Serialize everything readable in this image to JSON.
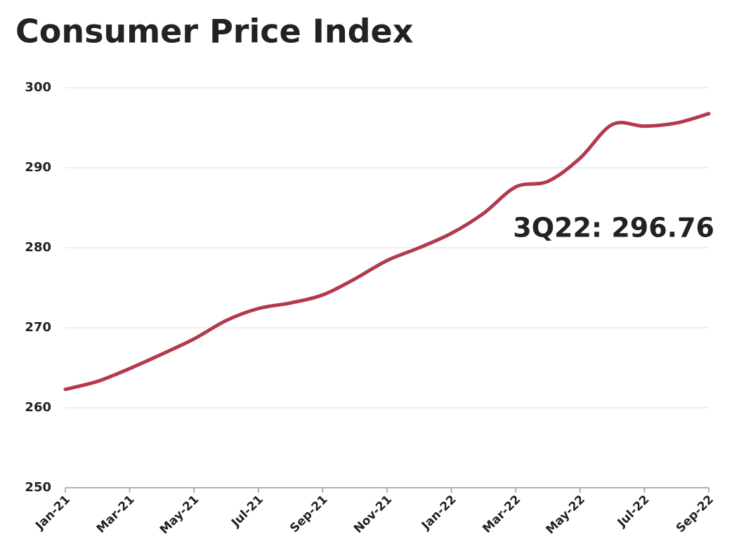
{
  "chart_data": {
    "type": "line",
    "title": "Consumer Price Index",
    "categories": [
      "Jan-21",
      null,
      "Mar-21",
      null,
      "May-21",
      null,
      "Jul-21",
      null,
      "Sep-21",
      null,
      "Nov-21",
      null,
      "Jan-22",
      null,
      "Mar-22",
      null,
      "May-22",
      null,
      "Jul-22",
      null,
      "Sep-22"
    ],
    "series": [
      {
        "name": "CPI",
        "color": "#b23a4c",
        "values": [
          262.3,
          263.3,
          264.9,
          266.7,
          268.6,
          270.9,
          272.4,
          273.1,
          274.1,
          276.1,
          278.4,
          280.0,
          281.8,
          284.3,
          287.6,
          288.3,
          291.2,
          295.4,
          295.2,
          295.6,
          296.76
        ]
      }
    ],
    "annotation": "3Q22: 296.76",
    "ylim": [
      250,
      300
    ],
    "yticks": [
      250,
      260,
      270,
      280,
      290,
      300
    ],
    "grid": true
  }
}
